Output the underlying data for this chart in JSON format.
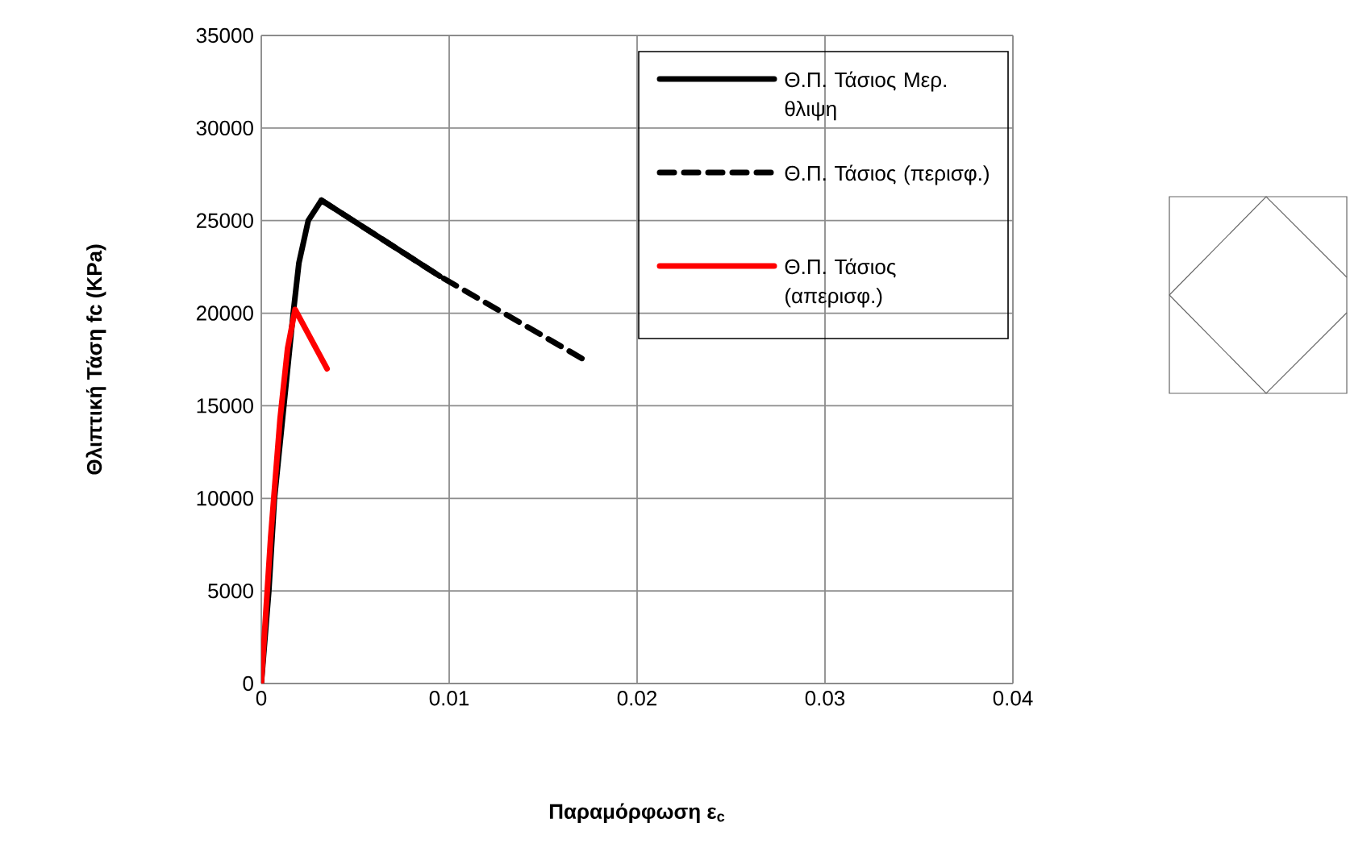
{
  "chart_data": {
    "type": "line",
    "xlabel": "Παραμόρφωση ε$_{c}$",
    "ylabel": "Θλιπτική Τάση fc (KPa)",
    "xlim": [
      0,
      0.04
    ],
    "xticks": [
      0,
      0.01,
      0.02,
      0.03,
      0.04
    ],
    "ylim": [
      0,
      35000
    ],
    "yticks": [
      0,
      5000,
      10000,
      15000,
      20000,
      25000,
      30000,
      35000
    ],
    "grid": true,
    "legend": "top right",
    "series": [
      {
        "name": "Θ.Π. Τάσιος Μερ. θλιψη",
        "color": "#000000",
        "line_style": "solid",
        "x": [
          0,
          0.0004,
          0.0007,
          0.0012,
          0.0017,
          0.002,
          0.0025,
          0.0032,
          0.0095
        ],
        "values": [
          0,
          5000,
          10000,
          15000,
          20000,
          22700,
          25000,
          26100,
          22000
        ]
      },
      {
        "name": "Θ.Π. Τάσιος (περισφ.)",
        "color": "#000000",
        "line_style": "dashed",
        "x": [
          0.0032,
          0.0095,
          0.0175
        ],
        "values": [
          26100,
          22000,
          17300
        ]
      },
      {
        "name": "Θ.Π. Τάσιος (απερισφ.)",
        "color": "#ff0000",
        "line_style": "solid",
        "x": [
          0,
          0.0005,
          0.001,
          0.0014,
          0.0018,
          0.0035
        ],
        "values": [
          0,
          7900,
          14300,
          18100,
          20200,
          17000
        ]
      }
    ]
  }
}
